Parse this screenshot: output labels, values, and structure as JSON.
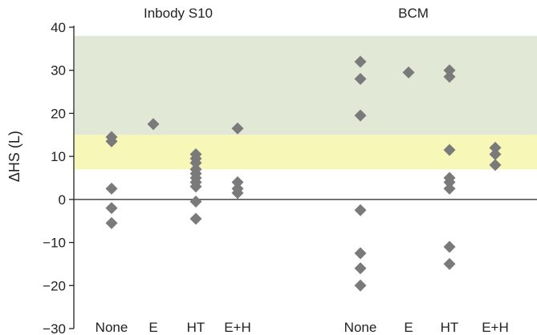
{
  "chart_data": {
    "type": "scatter",
    "ylabel": "ΔHS (L)",
    "ylim": [
      -30,
      40
    ],
    "yticks": [
      -30,
      -20,
      -10,
      0,
      10,
      20,
      30,
      40
    ],
    "grid": false,
    "bands": [
      {
        "from": 15,
        "to": 38,
        "color": "#e1e8d6"
      },
      {
        "from": 7,
        "to": 15,
        "color": "#f7f7b7"
      }
    ],
    "marker_color": "#7a7a7a",
    "groups": [
      {
        "title": "Inbody S10",
        "categories": [
          {
            "label": "None",
            "values": [
              14.5,
              13.5,
              2.5,
              -2,
              -5.5
            ]
          },
          {
            "label": "E",
            "values": [
              17.5
            ]
          },
          {
            "label": "HT",
            "values": [
              10.5,
              9.5,
              8.5,
              7,
              6,
              5,
              4,
              3,
              -0.5,
              -4.5
            ]
          },
          {
            "label": "E+H",
            "values": [
              16.5,
              4,
              2.5,
              1.5
            ]
          }
        ]
      },
      {
        "title": "BCM",
        "categories": [
          {
            "label": "None",
            "values": [
              32,
              28,
              19.5,
              -2.5,
              -12.5,
              -16,
              -20
            ]
          },
          {
            "label": "E",
            "values": [
              29.5
            ]
          },
          {
            "label": "HT",
            "values": [
              30,
              28.5,
              11.5,
              5,
              4,
              2.5,
              -11,
              -15
            ]
          },
          {
            "label": "E+H",
            "values": [
              12,
              10.5,
              8
            ]
          }
        ]
      }
    ]
  }
}
